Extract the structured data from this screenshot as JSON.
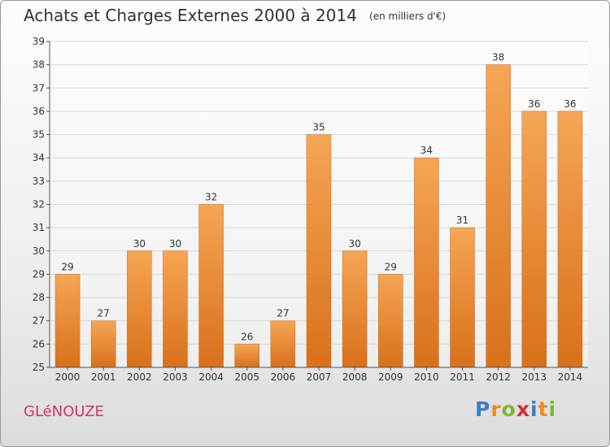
{
  "header": {
    "title": "Achats et Charges Externes 2000 à 2014",
    "subtitle": "(en milliers d'€)"
  },
  "footer": {
    "commune": "GLéNOUZE",
    "logo_text": "Proxiti",
    "logo_colors": [
      "#3b7fc4",
      "#f08a1e",
      "#7cb82f",
      "#d62e36",
      "#3b7fc4",
      "#f08a1e",
      "#7cb82f"
    ]
  },
  "colors": {
    "bar_light": "#f5a655",
    "bar_dark": "#d9701a",
    "grid": "#d8d8d8",
    "axis": "#555555",
    "text": "#333333"
  },
  "chart_data": {
    "type": "bar",
    "categories": [
      "2000",
      "2001",
      "2002",
      "2003",
      "2004",
      "2005",
      "2006",
      "2007",
      "2008",
      "2009",
      "2010",
      "2011",
      "2012",
      "2013",
      "2014"
    ],
    "values": [
      29,
      27,
      30,
      30,
      32,
      26,
      27,
      35,
      30,
      29,
      34,
      31,
      38,
      36,
      36
    ],
    "title": "Achats et Charges Externes 2000 à 2014",
    "ylim": [
      25,
      39
    ],
    "yticks": [
      25,
      26,
      27,
      28,
      29,
      30,
      31,
      32,
      33,
      34,
      35,
      36,
      37,
      38,
      39
    ],
    "grid": true,
    "data_labels": true
  }
}
